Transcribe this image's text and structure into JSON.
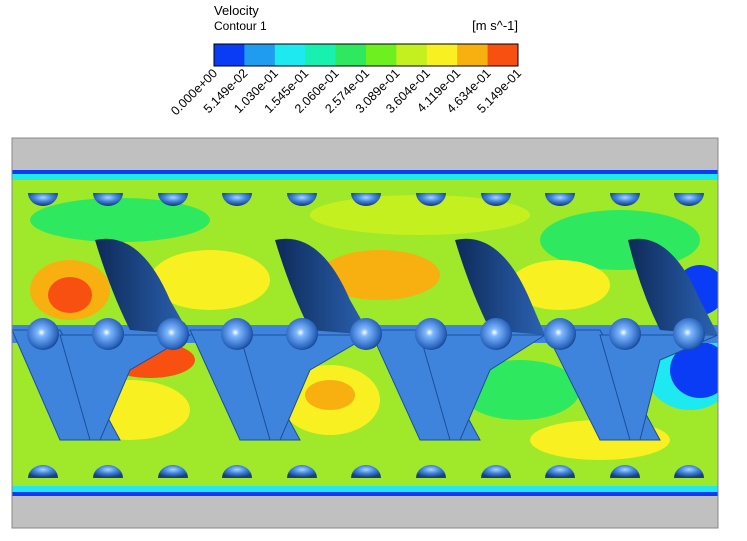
{
  "legend": {
    "title": "Velocity",
    "subtitle": "Contour 1",
    "unit": "[m s^-1]",
    "labels": [
      "0.000e+00",
      "5.149e-02",
      "1.030e-01",
      "1.545e-01",
      "2.060e-01",
      "2.574e-01",
      "3.089e-01",
      "3.604e-01",
      "4.119e-01",
      "4.634e-01",
      "5.149e-01"
    ],
    "colors": [
      "#0a3cf5",
      "#1f9cf0",
      "#1ee8f0",
      "#18f0b0",
      "#2ee860",
      "#6ef020",
      "#c4f020",
      "#f8f020",
      "#f8b010",
      "#f85010"
    ]
  }
}
